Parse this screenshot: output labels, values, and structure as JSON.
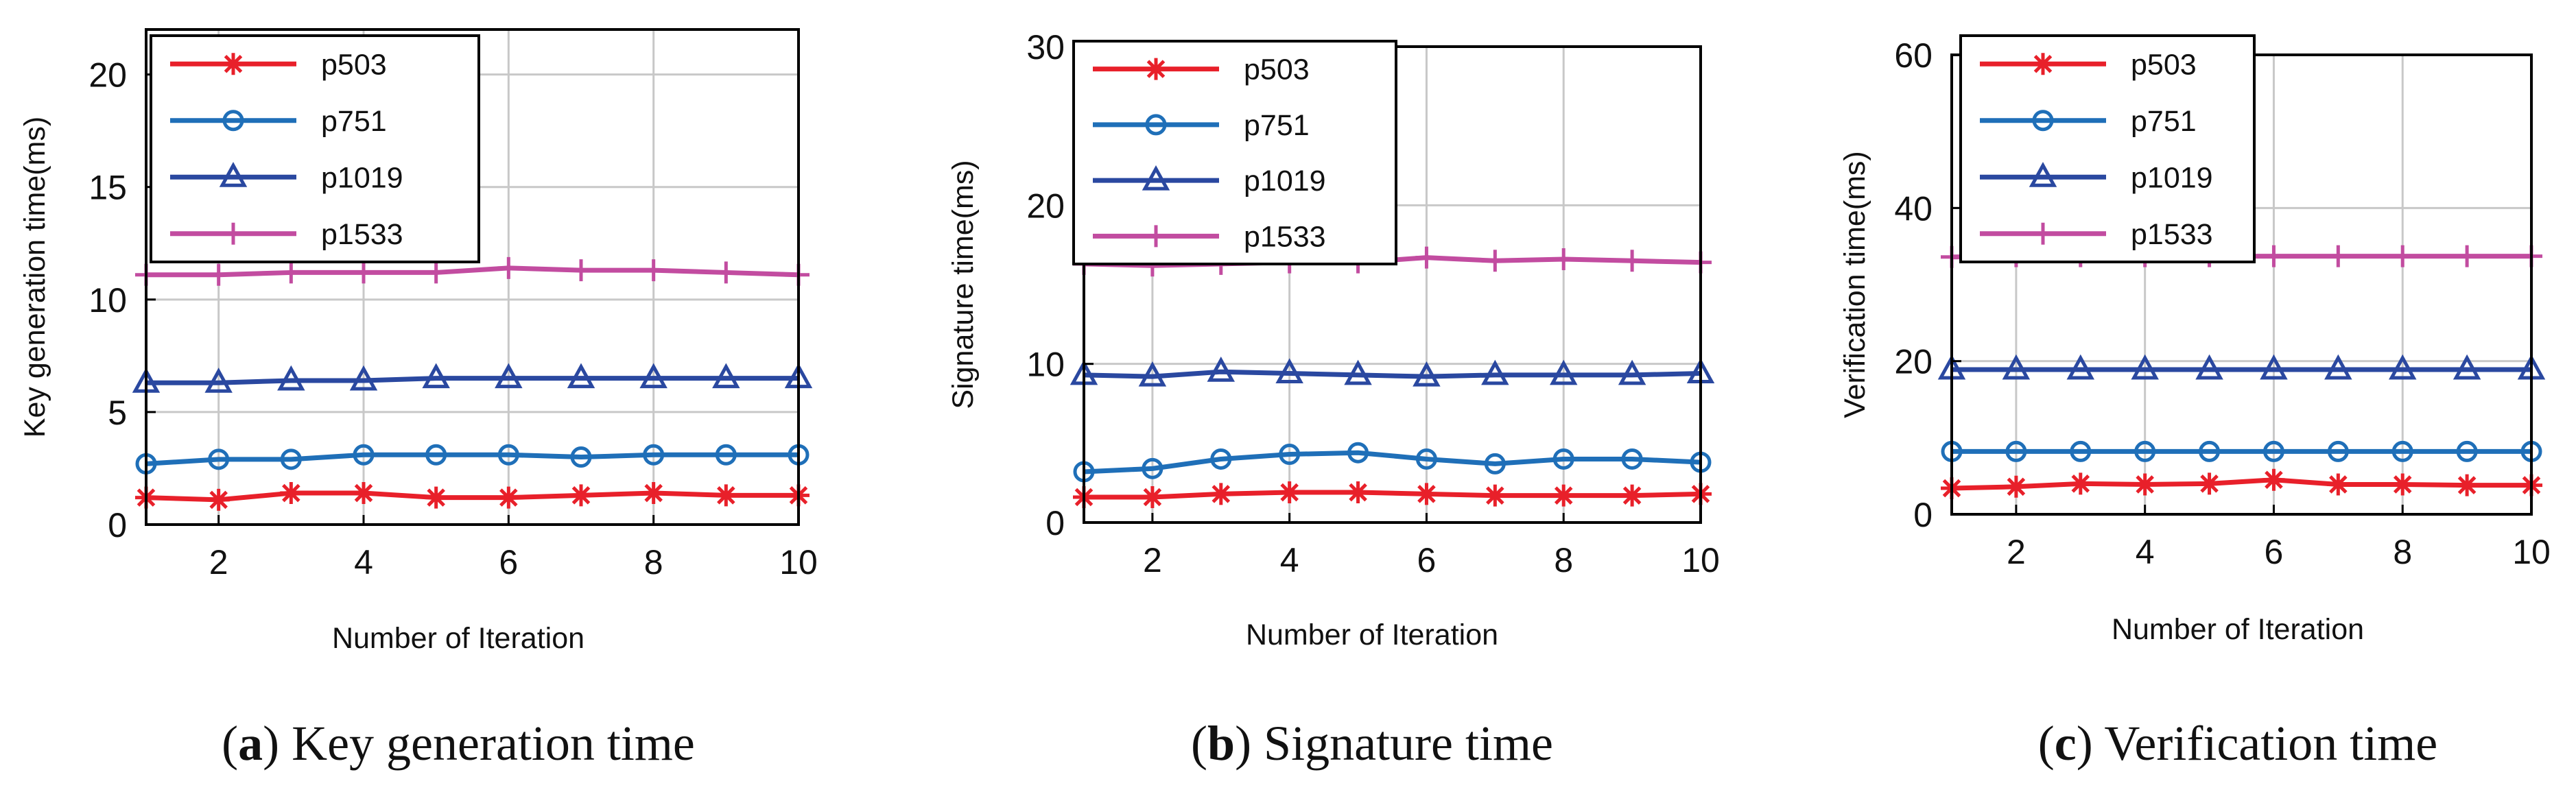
{
  "colors": {
    "p503": "#e8202a",
    "p751": "#1f6fb8",
    "p1019": "#2a48a0",
    "p1533": "#c24ca0",
    "grid": "#c8c8c8",
    "axis": "#000000"
  },
  "chart_data": [
    {
      "panel": "a",
      "type": "line",
      "caption_letter": "a",
      "caption_text": "Key generation time",
      "xlabel": "Number of Iteration",
      "ylabel": "Key generation time(ms)",
      "xlim": [
        1,
        10
      ],
      "ylim": [
        0,
        22
      ],
      "xticks": [
        2,
        4,
        6,
        8,
        10
      ],
      "yticks": [
        0,
        5,
        10,
        15,
        20
      ],
      "grid": true,
      "legend_position": "top-left",
      "x": [
        1,
        2,
        3,
        4,
        5,
        6,
        7,
        8,
        9,
        10
      ],
      "series": [
        {
          "name": "p503",
          "marker": "asterisk",
          "values": [
            1.2,
            1.1,
            1.4,
            1.4,
            1.2,
            1.2,
            1.3,
            1.4,
            1.3,
            1.3
          ]
        },
        {
          "name": "p751",
          "marker": "circle",
          "values": [
            2.7,
            2.9,
            2.9,
            3.1,
            3.1,
            3.1,
            3.0,
            3.1,
            3.1,
            3.1
          ]
        },
        {
          "name": "p1019",
          "marker": "triangle",
          "values": [
            6.3,
            6.3,
            6.4,
            6.4,
            6.5,
            6.5,
            6.5,
            6.5,
            6.5,
            6.5
          ]
        },
        {
          "name": "p1533",
          "marker": "plus",
          "values": [
            11.1,
            11.1,
            11.2,
            11.2,
            11.2,
            11.4,
            11.3,
            11.3,
            11.2,
            11.1
          ]
        }
      ]
    },
    {
      "panel": "b",
      "type": "line",
      "caption_letter": "b",
      "caption_text": "Signature time",
      "xlabel": "Number of Iteration",
      "ylabel": "Signature time(ms)",
      "xlim": [
        1,
        10
      ],
      "ylim": [
        0,
        30
      ],
      "xticks": [
        2,
        4,
        6,
        8,
        10
      ],
      "yticks": [
        0,
        10,
        20,
        30
      ],
      "grid": true,
      "legend_position": "top-left",
      "x": [
        1,
        2,
        3,
        4,
        5,
        6,
        7,
        8,
        9,
        10
      ],
      "series": [
        {
          "name": "p503",
          "marker": "asterisk",
          "values": [
            1.6,
            1.6,
            1.8,
            1.9,
            1.9,
            1.8,
            1.7,
            1.7,
            1.7,
            1.8
          ]
        },
        {
          "name": "p751",
          "marker": "circle",
          "values": [
            3.2,
            3.4,
            4.0,
            4.3,
            4.4,
            4.0,
            3.7,
            4.0,
            4.0,
            3.8
          ]
        },
        {
          "name": "p1019",
          "marker": "triangle",
          "values": [
            9.3,
            9.2,
            9.5,
            9.4,
            9.3,
            9.2,
            9.3,
            9.3,
            9.3,
            9.4
          ]
        },
        {
          "name": "p1533",
          "marker": "plus",
          "values": [
            16.3,
            16.2,
            16.3,
            16.4,
            16.4,
            16.7,
            16.5,
            16.6,
            16.5,
            16.4
          ]
        }
      ]
    },
    {
      "panel": "c",
      "type": "line",
      "caption_letter": "c",
      "caption_text": "Verification time",
      "xlabel": "Number of Iteration",
      "ylabel": "Verification time(ms)",
      "xlim": [
        1,
        10
      ],
      "ylim": [
        0,
        60
      ],
      "xticks": [
        2,
        4,
        6,
        8,
        10
      ],
      "yticks": [
        0,
        20,
        40,
        60
      ],
      "grid": true,
      "legend_position": "top-left",
      "x": [
        1,
        2,
        3,
        4,
        5,
        6,
        7,
        8,
        9,
        10
      ],
      "series": [
        {
          "name": "p503",
          "marker": "asterisk",
          "values": [
            3.4,
            3.6,
            4.0,
            3.9,
            4.0,
            4.5,
            3.9,
            3.9,
            3.8,
            3.8
          ]
        },
        {
          "name": "p751",
          "marker": "circle",
          "values": [
            8.2,
            8.2,
            8.2,
            8.2,
            8.2,
            8.2,
            8.2,
            8.2,
            8.2,
            8.2
          ]
        },
        {
          "name": "p1019",
          "marker": "triangle",
          "values": [
            18.9,
            18.9,
            18.9,
            18.9,
            18.9,
            18.9,
            18.9,
            18.9,
            18.9,
            18.9
          ]
        },
        {
          "name": "p1533",
          "marker": "plus",
          "values": [
            33.6,
            33.7,
            33.7,
            33.7,
            33.7,
            33.7,
            33.7,
            33.7,
            33.7,
            33.7
          ]
        }
      ]
    }
  ]
}
